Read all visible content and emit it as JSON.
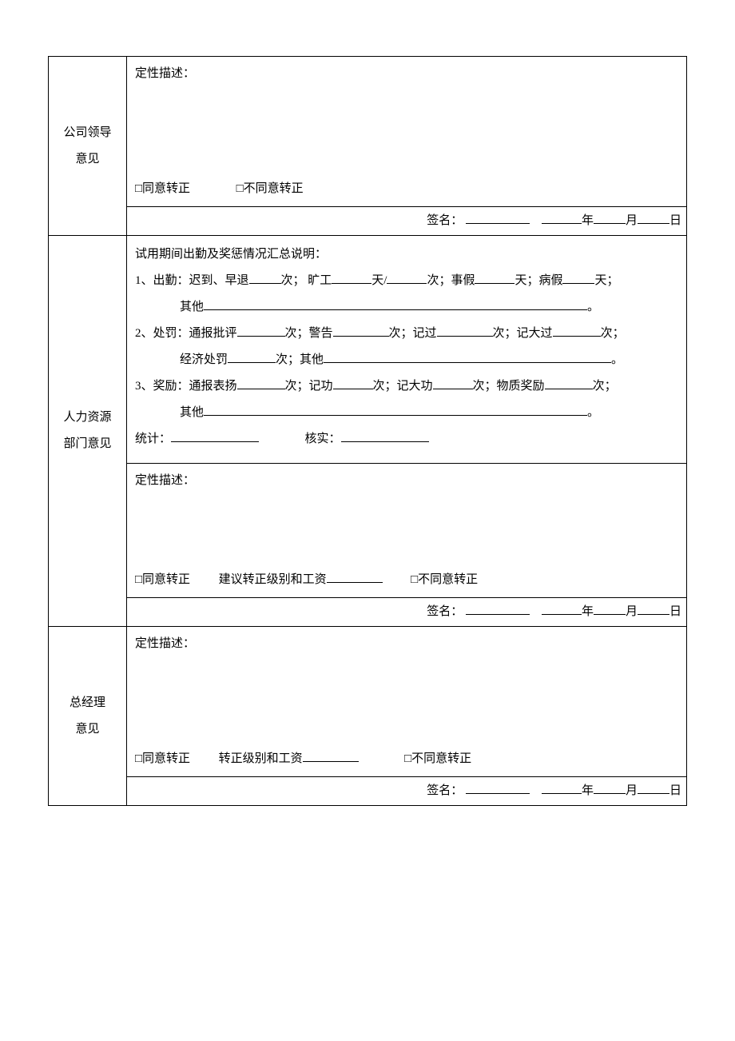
{
  "section1": {
    "label_line1": "公司领导",
    "label_line2": "意见",
    "desc_label": "定性描述：",
    "agree": "□同意转正",
    "disagree": "□不同意转正",
    "sig_prefix": "签名：",
    "year": "年",
    "month": "月",
    "day": "日"
  },
  "section2": {
    "label_line1": "人力资源",
    "label_line2": "部门意见",
    "attendance_title": "试用期间出勤及奖惩情况汇总说明：",
    "line1_a": "1、出勤：迟到、早退",
    "line1_b": "次； 旷工",
    "line1_c": "天/",
    "line1_d": "次；事假",
    "line1_e": "天；病假",
    "line1_f": "天；",
    "line1_other": "其他",
    "period": "。",
    "line2_a": "2、处罚：通报批评",
    "line2_b": "次；警告",
    "line2_c": "次；记过",
    "line2_d": "次；记大过",
    "line2_e": "次；",
    "line2_econ": "经济处罚",
    "line2_econ_b": "次；其他",
    "line3_a": "3、奖励：通报表扬",
    "line3_b": "次；记功",
    "line3_c": "次；记大功",
    "line3_d": "次；物质奖励",
    "line3_e": "次；",
    "line3_other": "其他",
    "stat_label": "统计：",
    "verify_label": "核实：",
    "desc_label": "定性描述：",
    "agree": "□同意转正",
    "suggest": "建议转正级别和工资",
    "disagree": "□不同意转正",
    "sig_prefix": "签名：",
    "year": "年",
    "month": "月",
    "day": "日"
  },
  "section3": {
    "label_line1": "总经理",
    "label_line2": "意见",
    "desc_label": "定性描述：",
    "agree": "□同意转正",
    "level": "转正级别和工资",
    "disagree": "□不同意转正",
    "sig_prefix": "签名：",
    "year": "年",
    "month": "月",
    "day": "日"
  }
}
